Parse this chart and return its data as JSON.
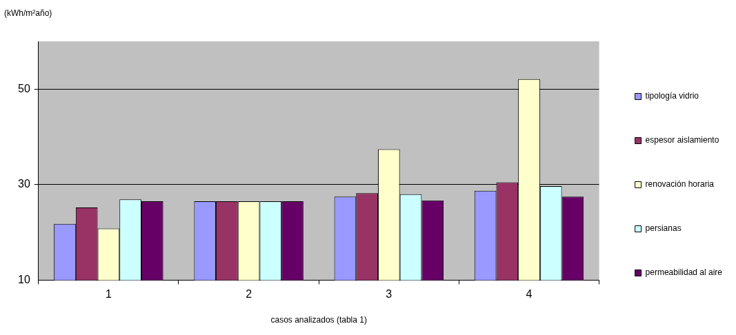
{
  "chart_data": {
    "type": "bar",
    "xlabel": "casos analizados (tabla 1)",
    "ylabel": "(kWh/m²año)",
    "categories": [
      "1",
      "2",
      "3",
      "4"
    ],
    "series": [
      {
        "name": "tipología vidrio",
        "color": "#9999ff",
        "values": [
          21.8,
          26.5,
          27.5,
          28.7
        ]
      },
      {
        "name": "espesor aislamiento",
        "color": "#993366",
        "values": [
          25.2,
          26.5,
          28.2,
          30.5
        ]
      },
      {
        "name": "renovación horaria",
        "color": "#ffffcc",
        "values": [
          20.8,
          26.5,
          37.4,
          52.1
        ]
      },
      {
        "name": "persianas",
        "color": "#ccffff",
        "values": [
          26.9,
          26.5,
          28.0,
          29.7
        ]
      },
      {
        "name": "permeabilidad al aire",
        "color": "#660066",
        "values": [
          26.5,
          26.5,
          26.7,
          27.5
        ]
      }
    ],
    "ylim": [
      10,
      60
    ],
    "yticks": [
      10,
      30,
      50
    ],
    "grid": "y",
    "legend": "right"
  }
}
